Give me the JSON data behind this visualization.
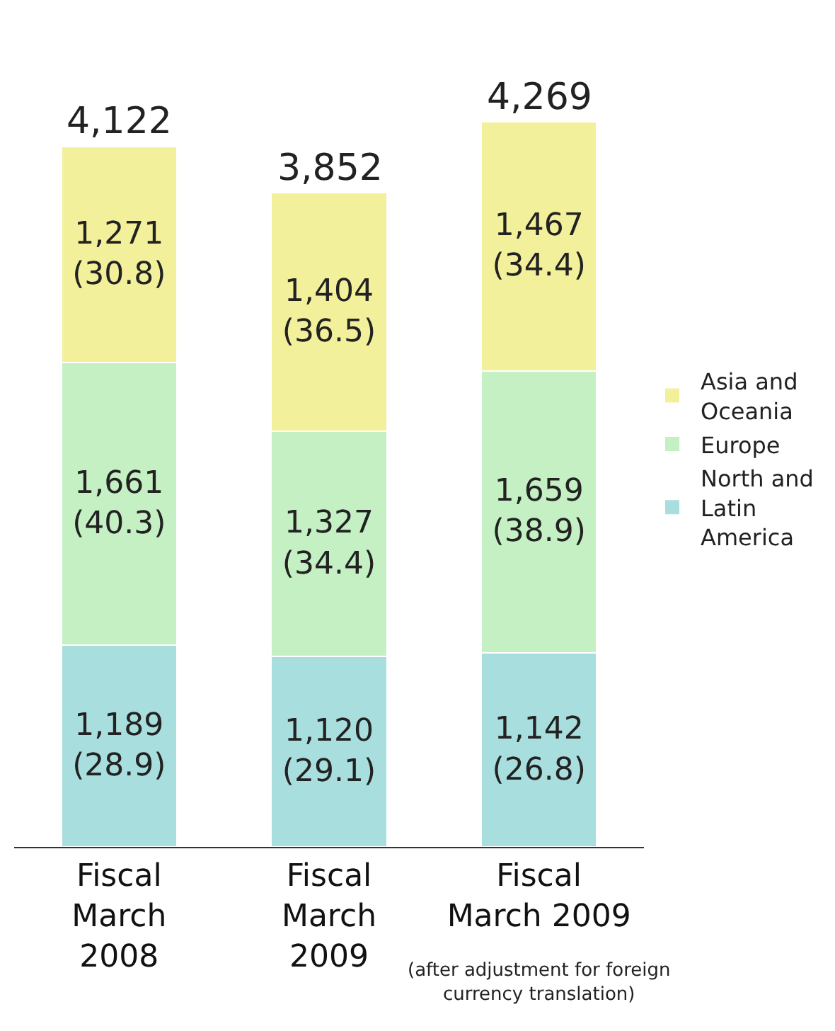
{
  "chart_data": {
    "type": "bar",
    "stacked": true,
    "legend": "right",
    "categories": [
      "Fiscal\nMarch\n2008",
      "Fiscal\nMarch\n2009",
      "Fiscal\nMarch 2009"
    ],
    "series": [
      {
        "name": "North and\nLatin\nAmerica",
        "color": "#a9dede",
        "values": [
          1189,
          1120,
          1142
        ],
        "value_labels": [
          "1,189\n(28.9)",
          "1,120\n(29.1)",
          "1,142\n(26.8)"
        ]
      },
      {
        "name": "Europe",
        "color": "#c4f0c4",
        "values": [
          1661,
          1327,
          1659
        ],
        "value_labels": [
          "1,661\n(40.3)",
          "1,327\n(34.4)",
          "1,659\n(38.9)"
        ]
      },
      {
        "name": "Asia and\nOceania",
        "color": "#f2f09a",
        "values": [
          1271,
          1404,
          1467
        ],
        "value_labels": [
          "1,271\n(30.8)",
          "1,404\n(36.5)",
          "1,467\n(34.4)"
        ]
      }
    ],
    "totals": [
      "4,122",
      "3,852",
      "4,269"
    ],
    "annotations": [
      "(after adjustment for foreign\ncurrency translation)"
    ]
  }
}
